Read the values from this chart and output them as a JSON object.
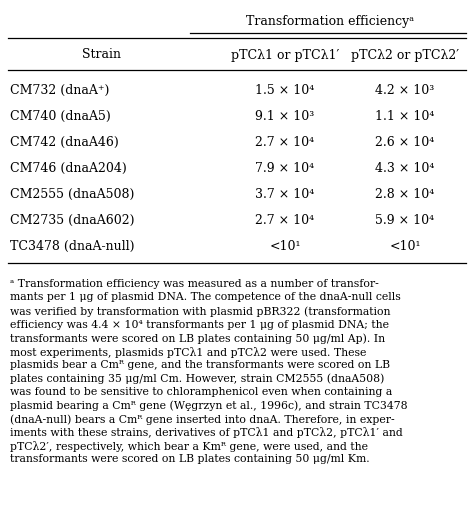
{
  "col_header_main": "Transformation efficiencyᵃ",
  "col1_header": "pTCλ1 or pTCλ1′",
  "col2_header": "pTCλ2 or pTCλ2′",
  "row_header": "Strain",
  "strains": [
    "CM732 (dnaA⁺)",
    "CM740 (dnaA5)",
    "CM742 (dnaA46)",
    "CM746 (dnaA204)",
    "CM2555 (dnaA508)",
    "CM2735 (dnaA602)",
    "TC3478 (dnaA-null)"
  ],
  "col1_vals": [
    "1.5 × 10⁴",
    "9.1 × 10³",
    "2.7 × 10⁴",
    "7.9 × 10⁴",
    "3.7 × 10⁴",
    "2.7 × 10⁴",
    "<10¹"
  ],
  "col2_vals": [
    "4.2 × 10³",
    "1.1 × 10⁴",
    "2.6 × 10⁴",
    "4.3 × 10⁴",
    "2.8 × 10⁴",
    "5.9 × 10⁴",
    "<10¹"
  ],
  "footnote_lines": [
    "ᵃ Transformation efficiency was measured as a number of transfor-",
    "mants per 1 μg of plasmid DNA. The competence of the dnaA-null cells",
    "was verified by transformation with plasmid pBR322 (transformation",
    "efficiency was 4.4 × 10⁴ transformants per 1 μg of plasmid DNA; the",
    "transformants were scored on LB plates containing 50 μg/ml Ap). In",
    "most experiments, plasmids pTCλ1 and pTCλ2 were used. These",
    "plasmids bear a Cmᴿ gene, and the transformants were scored on LB",
    "plates containing 35 μg/ml Cm. However, strain CM2555 (dnaA508)",
    "was found to be sensitive to chloramphenicol even when containing a",
    "plasmid bearing a Cmᴿ gene (Wȩgrzyn et al., 1996c), and strain TC3478",
    "(dnaA-null) bears a Cmᴿ gene inserted into dnaA. Therefore, in exper-",
    "iments with these strains, derivatives of pTCλ1 and pTCλ2, pTCλ1′ and",
    "pTCλ2′, respectively, which bear a Kmᴿ gene, were used, and the",
    "transformants were scored on LB plates containing 50 μg/ml Km."
  ],
  "bg_color": "#ffffff",
  "text_color": "#000000",
  "font_size_header": 9.0,
  "font_size_data": 9.0,
  "font_size_footnote": 7.8
}
